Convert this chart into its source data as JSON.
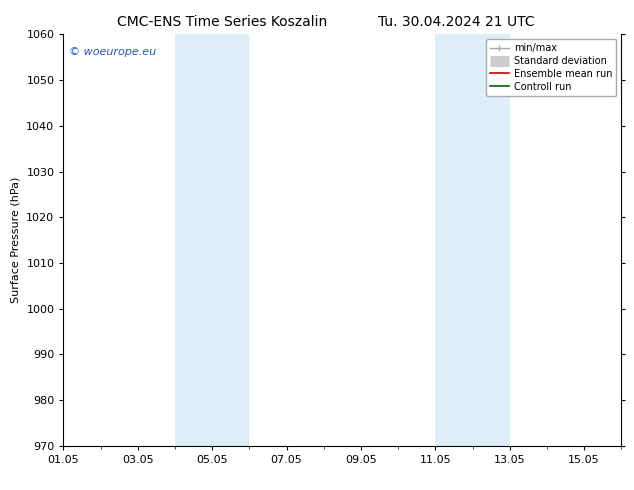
{
  "title_left": "CMC-ENS Time Series Koszalin",
  "title_right": "Tu. 30.04.2024 21 UTC",
  "ylabel": "Surface Pressure (hPa)",
  "ylim": [
    970,
    1060
  ],
  "yticks": [
    970,
    980,
    990,
    1000,
    1010,
    1020,
    1030,
    1040,
    1050,
    1060
  ],
  "xlim": [
    0,
    15
  ],
  "xtick_labels": [
    "01.05",
    "03.05",
    "05.05",
    "07.05",
    "09.05",
    "11.05",
    "13.05",
    "15.05"
  ],
  "xtick_positions": [
    0,
    2,
    4,
    6,
    8,
    10,
    12,
    14
  ],
  "shaded_bands": [
    {
      "x_start": 3.0,
      "x_end": 5.0
    },
    {
      "x_start": 10.0,
      "x_end": 12.0
    }
  ],
  "shade_color": "#ddeef8",
  "watermark_text": "© woeurope.eu",
  "watermark_color": "#2255cc",
  "background_color": "#ffffff",
  "legend_items": [
    {
      "label": "min/max",
      "color": "#aaaaaa",
      "lw": 1.2
    },
    {
      "label": "Standard deviation",
      "color": "#cccccc",
      "lw": 6
    },
    {
      "label": "Ensemble mean run",
      "color": "#cc0000",
      "lw": 1.2
    },
    {
      "label": "Controll run",
      "color": "#006600",
      "lw": 1.2
    }
  ],
  "figsize": [
    6.34,
    4.9
  ],
  "dpi": 100,
  "title_fontsize": 10,
  "axis_fontsize": 8,
  "legend_fontsize": 7
}
